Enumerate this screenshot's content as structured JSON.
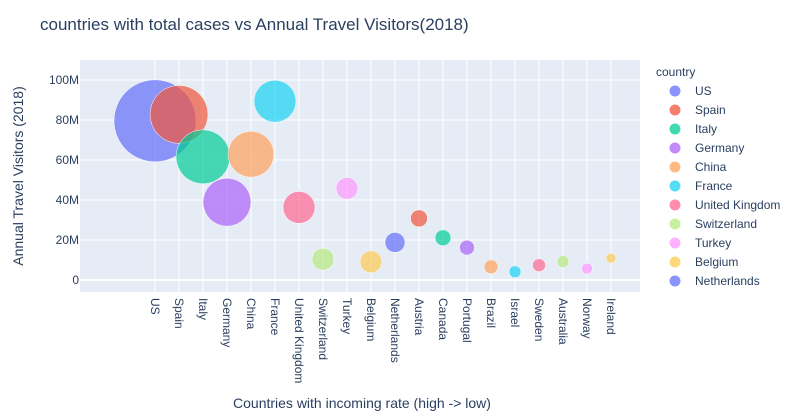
{
  "chart_data": {
    "type": "scatter",
    "title": "countries with total cases vs Annual Travel Visitors(2018)",
    "xlabel": "Countries with incoming rate (high -> low)",
    "ylabel": "Annual Travel Visitors (2018)",
    "ylim": [
      -6000000,
      110000000
    ],
    "yticks": [
      0,
      20000000,
      40000000,
      60000000,
      80000000,
      100000000
    ],
    "ytick_labels": [
      "0",
      "20M",
      "40M",
      "60M",
      "80M",
      "100M"
    ],
    "grid": true,
    "plot_bg": "#e5ecf6",
    "legend_title": "country",
    "legend_position": "right",
    "categories": [
      "US",
      "Spain",
      "Italy",
      "Germany",
      "China",
      "France",
      "United Kingdom",
      "Switzerland",
      "Turkey",
      "Belgium",
      "Netherlands",
      "Austria",
      "Canada",
      "Portugal",
      "Brazil",
      "Israel",
      "Sweden",
      "Australia",
      "Norway",
      "Ireland"
    ],
    "points": [
      {
        "country": "US",
        "y": 79600000,
        "size": 41,
        "color": "#636efa"
      },
      {
        "country": "Spain",
        "y": 82800000,
        "size": 29,
        "color": "#ef553b"
      },
      {
        "country": "Italy",
        "y": 61600000,
        "size": 27,
        "color": "#00cc96"
      },
      {
        "country": "Germany",
        "y": 38900000,
        "size": 24,
        "color": "#ab63fa"
      },
      {
        "country": "China",
        "y": 62900000,
        "size": 23,
        "color": "#ffa15a"
      },
      {
        "country": "France",
        "y": 89400000,
        "size": 21,
        "color": "#19d3f3"
      },
      {
        "country": "United Kingdom",
        "y": 36300000,
        "size": 16,
        "color": "#ff6692"
      },
      {
        "country": "Switzerland",
        "y": 10400000,
        "size": 11,
        "color": "#b6e880"
      },
      {
        "country": "Turkey",
        "y": 45800000,
        "size": 11,
        "color": "#ff97ff"
      },
      {
        "country": "Belgium",
        "y": 9100000,
        "size": 11,
        "color": "#fecb52"
      },
      {
        "country": "Netherlands",
        "y": 18800000,
        "size": 10,
        "color": "#636efa"
      },
      {
        "country": "Austria",
        "y": 30800000,
        "size": 8.5,
        "color": "#ef553b"
      },
      {
        "country": "Canada",
        "y": 21100000,
        "size": 8,
        "color": "#00cc96"
      },
      {
        "country": "Portugal",
        "y": 16200000,
        "size": 7.5,
        "color": "#ab63fa"
      },
      {
        "country": "Brazil",
        "y": 6600000,
        "size": 7,
        "color": "#ffa15a"
      },
      {
        "country": "Israel",
        "y": 4100000,
        "size": 6,
        "color": "#19d3f3"
      },
      {
        "country": "Sweden",
        "y": 7400000,
        "size": 6.5,
        "color": "#ff6692"
      },
      {
        "country": "Australia",
        "y": 9200000,
        "size": 6,
        "color": "#b6e880"
      },
      {
        "country": "Norway",
        "y": 5700000,
        "size": 5.5,
        "color": "#ff97ff"
      },
      {
        "country": "Ireland",
        "y": 10900000,
        "size": 5,
        "color": "#fecb52"
      }
    ],
    "legend": [
      {
        "label": "US",
        "color": "#636efa"
      },
      {
        "label": "Spain",
        "color": "#ef553b"
      },
      {
        "label": "Italy",
        "color": "#00cc96"
      },
      {
        "label": "Germany",
        "color": "#ab63fa"
      },
      {
        "label": "China",
        "color": "#ffa15a"
      },
      {
        "label": "France",
        "color": "#19d3f3"
      },
      {
        "label": "United Kingdom",
        "color": "#ff6692"
      },
      {
        "label": "Switzerland",
        "color": "#b6e880"
      },
      {
        "label": "Turkey",
        "color": "#ff97ff"
      },
      {
        "label": "Belgium",
        "color": "#fecb52"
      },
      {
        "label": "Netherlands",
        "color": "#636efa"
      }
    ]
  }
}
